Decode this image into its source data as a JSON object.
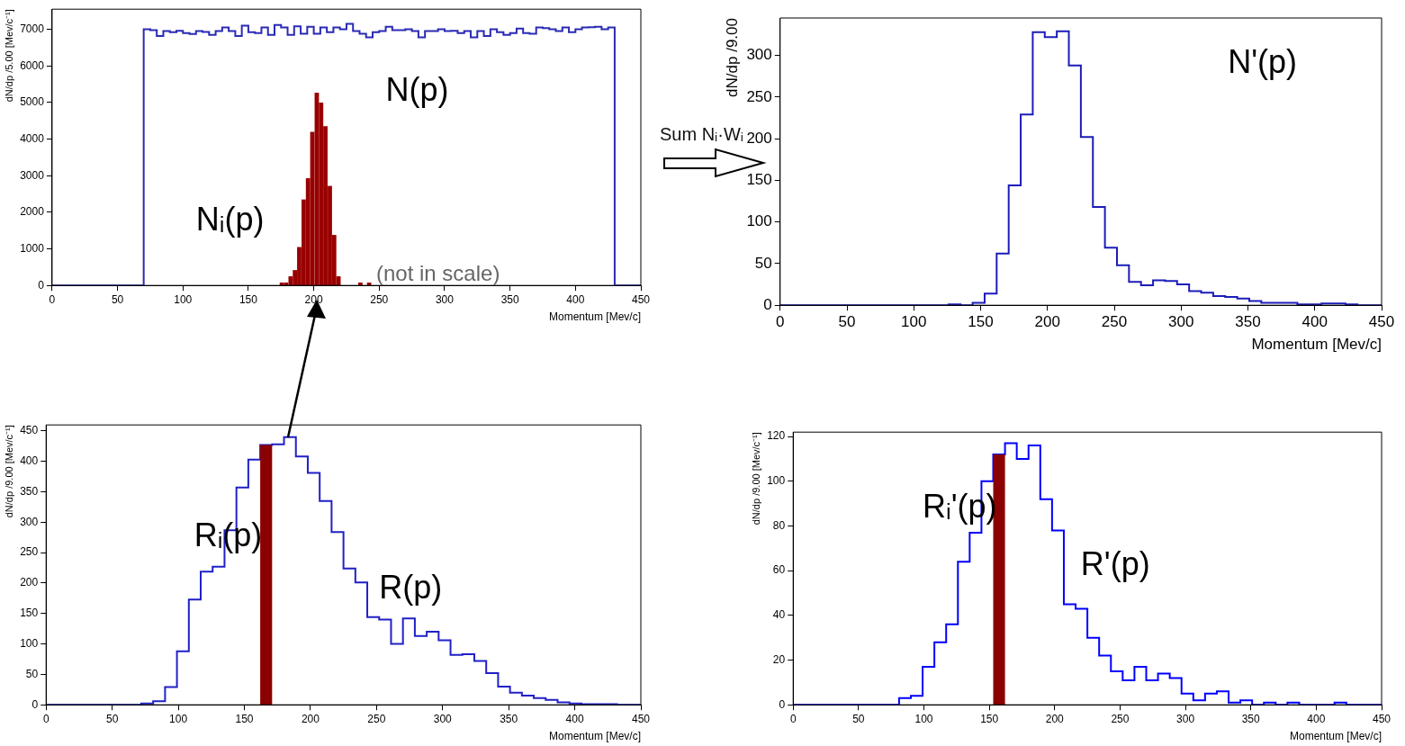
{
  "chart_data": [
    {
      "type": "histogram",
      "ylabel": "dN/dp /5.00 [Mev/c⁻¹]",
      "xlabel": "Momentum [Mev/c]",
      "xlim": [
        0,
        450
      ],
      "ylim": [
        0,
        7550
      ],
      "xticks": [
        0,
        50,
        100,
        150,
        200,
        250,
        300,
        350,
        400,
        450
      ],
      "yticks": [
        0,
        1000,
        2000,
        3000,
        4000,
        5000,
        6000,
        7000
      ],
      "annotations": [
        "(not in scale)"
      ],
      "bins": [
        0,
        5,
        10,
        15,
        20,
        25,
        30,
        35,
        40,
        45,
        50,
        55,
        60,
        65,
        70,
        75,
        80,
        85,
        90,
        95,
        100,
        105,
        110,
        115,
        120,
        125,
        130,
        135,
        140,
        145,
        150,
        155,
        160,
        165,
        170,
        175,
        180,
        185,
        190,
        195,
        200,
        205,
        210,
        215,
        220,
        225,
        230,
        235,
        240,
        245,
        250,
        255,
        260,
        265,
        270,
        275,
        280,
        285,
        290,
        295,
        300,
        305,
        310,
        315,
        320,
        325,
        330,
        335,
        340,
        345,
        350,
        355,
        360,
        365,
        370,
        375,
        380,
        385,
        390,
        395,
        400,
        405,
        410,
        415,
        420,
        425,
        430,
        435,
        440,
        445,
        450
      ],
      "series": [
        {
          "name": "N(p)",
          "type": "histogram",
          "color": "#2a2ab4",
          "values": [
            0,
            0,
            0,
            0,
            0,
            0,
            0,
            0,
            0,
            0,
            0,
            0,
            0,
            0,
            7000,
            6980,
            6820,
            6950,
            6920,
            6960,
            6900,
            6870,
            6950,
            6930,
            6850,
            6950,
            7050,
            6950,
            6820,
            7100,
            6920,
            6900,
            7050,
            6850,
            7120,
            7050,
            6850,
            7080,
            6880,
            7070,
            6880,
            7050,
            6920,
            7050,
            7000,
            7150,
            6950,
            6880,
            6780,
            6920,
            6950,
            7070,
            6980,
            6980,
            7000,
            6950,
            6780,
            6950,
            6950,
            7000,
            6950,
            6960,
            6900,
            6950,
            6780,
            6950,
            6820,
            7000,
            6920,
            6850,
            6900,
            7020,
            6900,
            6880,
            7050,
            7030,
            7000,
            6950,
            7050,
            6920,
            7000,
            7050,
            7060,
            7070,
            7000,
            7050,
            0,
            0,
            0,
            0
          ]
        },
        {
          "name": "Nᵢ(p)",
          "type": "bar",
          "color": "#990000",
          "x": [
            175.6,
            178.9,
            182.3,
            185.6,
            188.9,
            192.3,
            195.6,
            198.9,
            202.3,
            205.6,
            208.9,
            212.3,
            215.6,
            218.9,
            235.6,
            242.3
          ],
          "values": [
            80,
            80,
            250,
            420,
            1050,
            2350,
            2930,
            4200,
            5270,
            5000,
            4350,
            2720,
            1380,
            250,
            80,
            80
          ]
        }
      ]
    },
    {
      "type": "histogram",
      "ylabel": "dN/dp /9.00",
      "xlabel": "Momentum [Mev/c]",
      "xlim": [
        0,
        450
      ],
      "ylim": [
        0,
        345
      ],
      "xticks": [
        0,
        50,
        100,
        150,
        200,
        250,
        300,
        350,
        400,
        450
      ],
      "yticks": [
        0,
        50,
        100,
        150,
        200,
        250,
        300
      ],
      "annotations": [
        "Sum Nᵢ·Wᵢ"
      ],
      "bins": [
        0,
        9,
        18,
        27,
        36,
        45,
        54,
        63,
        72,
        81,
        90,
        99,
        108,
        117,
        126,
        135,
        144,
        153,
        162,
        171,
        180,
        189,
        198,
        207,
        216,
        225,
        234,
        243,
        252,
        261,
        270,
        279,
        288,
        297,
        306,
        315,
        324,
        333,
        342,
        351,
        360,
        369,
        378,
        387,
        396,
        405,
        414,
        423,
        432,
        441,
        450
      ],
      "series": [
        {
          "name": "N'(p)",
          "type": "histogram",
          "color": "#1c1cb8",
          "values": [
            0,
            0,
            0,
            0,
            0,
            0,
            0,
            0,
            0,
            0,
            0,
            0,
            0,
            0,
            1,
            0,
            3,
            14,
            62,
            144,
            229,
            328,
            322,
            329,
            288,
            202,
            118,
            69,
            48,
            28,
            24,
            30,
            29,
            25,
            17,
            15,
            11,
            10,
            8,
            5,
            3,
            3,
            3,
            1,
            1,
            2,
            2,
            1,
            0,
            0
          ]
        }
      ]
    },
    {
      "type": "histogram",
      "ylabel": "dN/dp /9.00 [Mev/c⁻¹]",
      "xlabel": "Momentum [Mev/c]",
      "xlim": [
        0,
        450
      ],
      "ylim": [
        0,
        460
      ],
      "xticks": [
        0,
        50,
        100,
        150,
        200,
        250,
        300,
        350,
        400,
        450
      ],
      "yticks": [
        0,
        50,
        100,
        150,
        200,
        250,
        300,
        350,
        400,
        450
      ],
      "bins": [
        0,
        9,
        18,
        27,
        36,
        45,
        54,
        63,
        72,
        81,
        90,
        99,
        108,
        117,
        126,
        135,
        144,
        153,
        162,
        171,
        180,
        189,
        198,
        207,
        216,
        225,
        234,
        243,
        252,
        261,
        270,
        279,
        288,
        297,
        306,
        315,
        324,
        333,
        342,
        351,
        360,
        369,
        378,
        387,
        396,
        405,
        414,
        423,
        432,
        441,
        450
      ],
      "series": [
        {
          "name": "R(p)",
          "type": "histogram",
          "color": "#2020c8",
          "values": [
            0,
            0,
            0,
            0,
            0,
            0,
            0,
            0,
            2,
            6,
            29,
            88,
            173,
            219,
            227,
            287,
            357,
            403,
            427,
            428,
            440,
            408,
            381,
            335,
            284,
            224,
            201,
            144,
            140,
            100,
            142,
            113,
            120,
            106,
            82,
            83,
            72,
            52,
            30,
            20,
            15,
            11,
            8,
            4,
            2,
            1,
            1,
            1,
            0,
            0
          ]
        },
        {
          "name": "Rᵢ(p)",
          "type": "bar",
          "color": "#8b0000",
          "x": [
            166.5
          ],
          "values": [
            427
          ]
        }
      ]
    },
    {
      "type": "histogram",
      "ylabel": "dN/dp /9.00 [Mev/c⁻¹]",
      "xlabel": "Momentum [Mev/c]",
      "xlim": [
        0,
        450
      ],
      "ylim": [
        0,
        122
      ],
      "xticks": [
        0,
        50,
        100,
        150,
        200,
        250,
        300,
        350,
        400,
        450
      ],
      "yticks": [
        0,
        20,
        40,
        60,
        80,
        100,
        120
      ],
      "bins": [
        0,
        9,
        18,
        27,
        36,
        45,
        54,
        63,
        72,
        81,
        90,
        99,
        108,
        117,
        126,
        135,
        144,
        153,
        162,
        171,
        180,
        189,
        198,
        207,
        216,
        225,
        234,
        243,
        252,
        261,
        270,
        279,
        288,
        297,
        306,
        315,
        324,
        333,
        342,
        351,
        360,
        369,
        378,
        387,
        396,
        405,
        414,
        423,
        432,
        441,
        450
      ],
      "series": [
        {
          "name": "R'(p)",
          "type": "histogram",
          "color": "#0000ff",
          "values": [
            0,
            0,
            0,
            0,
            0,
            0,
            0,
            0,
            0,
            3,
            4,
            17,
            28,
            36,
            64,
            77,
            100,
            112,
            117,
            110,
            116,
            92,
            78,
            45,
            43,
            30,
            22,
            15,
            11,
            17,
            11,
            14,
            12,
            5,
            2,
            5,
            6,
            1,
            2,
            0,
            1,
            0,
            1,
            0,
            0,
            0,
            1,
            0,
            0,
            0
          ]
        },
        {
          "name": "Rᵢ'(p)",
          "type": "bar",
          "color": "#8b0000",
          "x": [
            157.5
          ],
          "values": [
            112
          ]
        }
      ]
    }
  ]
}
